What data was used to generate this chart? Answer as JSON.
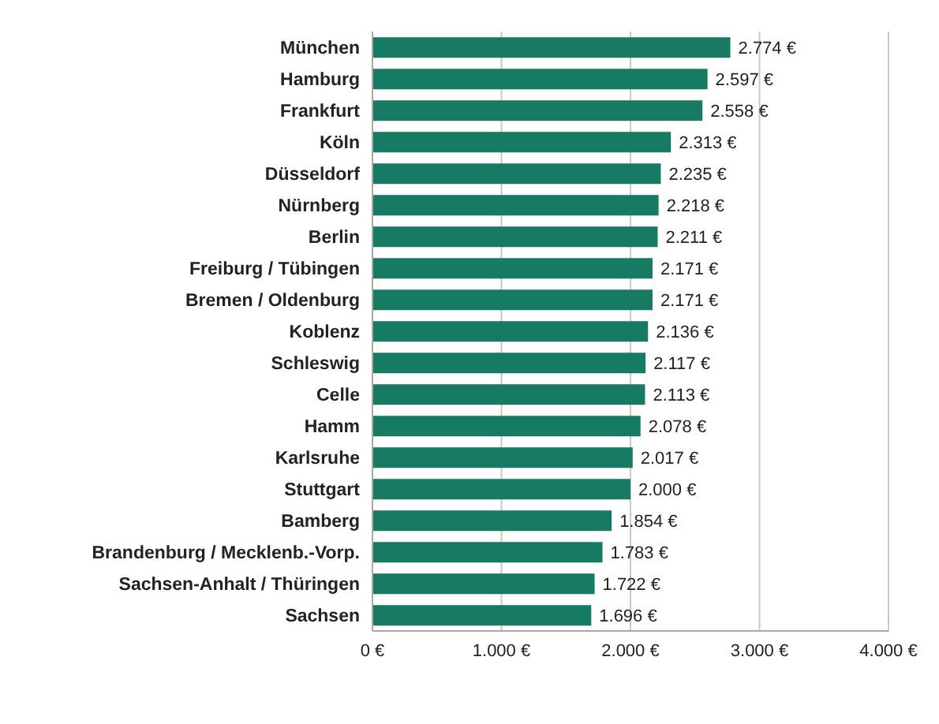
{
  "chart_data": {
    "type": "bar",
    "orientation": "horizontal",
    "categories": [
      "München",
      "Hamburg",
      "Frankfurt",
      "Köln",
      "Düsseldorf",
      "Nürnberg",
      "Berlin",
      "Freiburg / Tübingen",
      "Bremen / Oldenburg",
      "Koblenz",
      "Schleswig",
      "Celle",
      "Hamm",
      "Karlsruhe",
      "Stuttgart",
      "Bamberg",
      "Brandenburg / Mecklenb.-Vorp.",
      "Sachsen-Anhalt / Thüringen",
      "Sachsen"
    ],
    "values": [
      2774,
      2597,
      2558,
      2313,
      2235,
      2218,
      2211,
      2171,
      2171,
      2136,
      2117,
      2113,
      2078,
      2017,
      2000,
      1854,
      1783,
      1722,
      1696
    ],
    "value_labels": [
      "2.774 €",
      "2.597 €",
      "2.558 €",
      "2.313 €",
      "2.235 €",
      "2.218 €",
      "2.211 €",
      "2.171 €",
      "2.171 €",
      "2.136 €",
      "2.117 €",
      "2.113 €",
      "2.078 €",
      "2.017 €",
      "2.000 €",
      "1.854 €",
      "1.783 €",
      "1.722 €",
      "1.696 €"
    ],
    "color": "#177a62",
    "xlim": [
      0,
      4000
    ],
    "xticks": [
      {
        "value": 0,
        "label": "0 €"
      },
      {
        "value": 1000,
        "label": "1.000 €"
      },
      {
        "value": 2000,
        "label": "2.000 €"
      },
      {
        "value": 3000,
        "label": "3.000 €"
      },
      {
        "value": 4000,
        "label": "4.000 €"
      }
    ],
    "grid": "x"
  }
}
